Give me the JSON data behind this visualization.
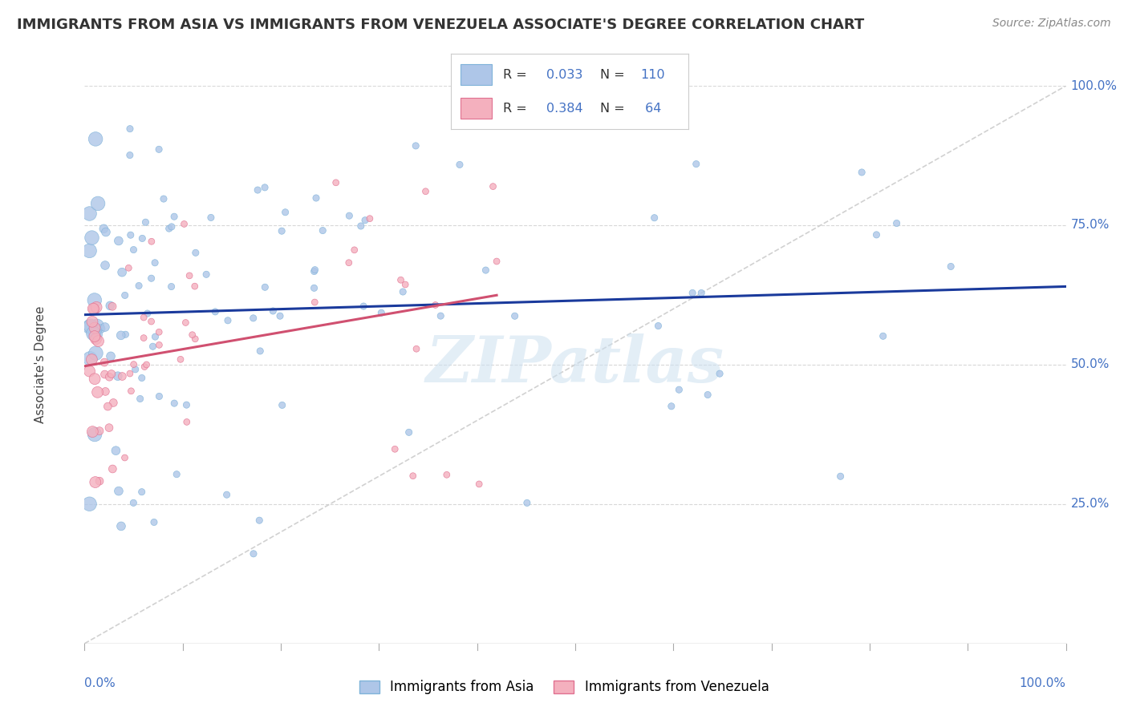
{
  "title": "IMMIGRANTS FROM ASIA VS IMMIGRANTS FROM VENEZUELA ASSOCIATE'S DEGREE CORRELATION CHART",
  "source": "Source: ZipAtlas.com",
  "ylabel": "Associate's Degree",
  "asia_color_fill": "#aec6e8",
  "asia_color_edge": "#7fb3d9",
  "venezuela_color_fill": "#f4b0be",
  "venezuela_color_edge": "#e07090",
  "trendline_asia_color": "#1a3a9c",
  "trendline_venezuela_color": "#d05070",
  "diagonal_color": "#cccccc",
  "background_color": "#ffffff",
  "watermark_color": "#cce0f0",
  "watermark_text": "ZIPatlas",
  "legend_r_n_color": "#4472c4",
  "legend_text_color": "#333333",
  "ytick_color": "#4472c4",
  "xtick_label_color": "#4472c4",
  "grid_color": "#d8d8d8",
  "axis_line_color": "#aaaaaa"
}
